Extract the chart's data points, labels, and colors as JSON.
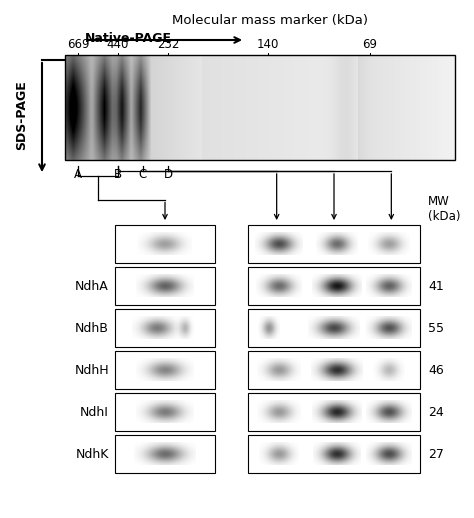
{
  "title": "Molecular mass marker (kDa)",
  "native_page_label": "Native-PAGE",
  "sds_page_label": "SDS-PAGE",
  "mw_label": "MW\n(kDa)",
  "marker_positions": [
    "669",
    "440",
    "232",
    "140",
    "69"
  ],
  "band_labels": [
    "A",
    "B",
    "C",
    "D"
  ],
  "protein_labels": [
    "NdhA",
    "NdhB",
    "NdhH",
    "NdhI",
    "NdhK"
  ],
  "mw_values": [
    "41",
    "55",
    "46",
    "24",
    "27"
  ],
  "background_color": "#ffffff",
  "fig_width": 4.74,
  "fig_height": 5.18,
  "dpi": 100
}
